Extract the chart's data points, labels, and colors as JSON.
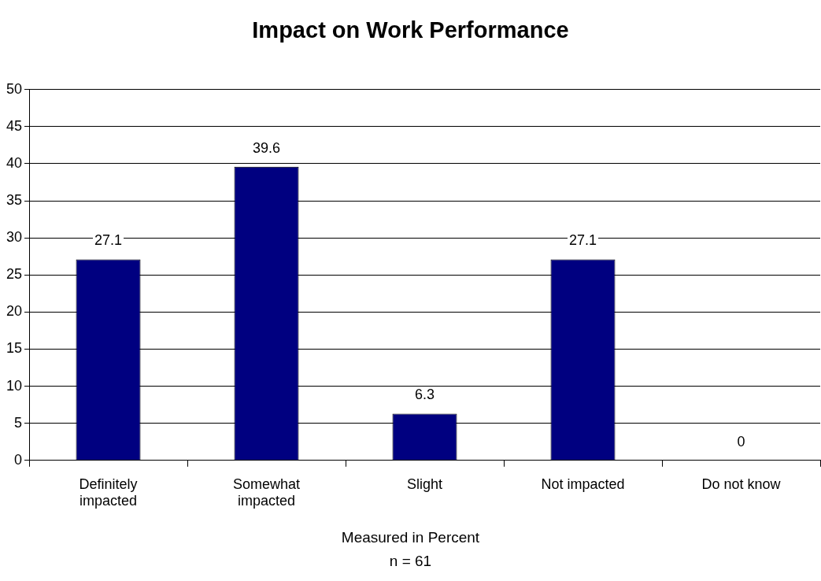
{
  "chart_data": {
    "type": "bar",
    "title": "Impact on Work Performance",
    "xlabel": "Measured in Percent",
    "annotations": [
      "n = 61"
    ],
    "categories": [
      "Definitely impacted",
      "Somewhat impacted",
      "Slight",
      "Not impacted",
      "Do not know"
    ],
    "values": [
      27.1,
      39.6,
      6.3,
      27.1,
      0
    ],
    "color": "#000080",
    "ylim": [
      0,
      50
    ],
    "yticks": [
      0,
      5,
      10,
      15,
      20,
      25,
      30,
      35,
      40,
      45,
      50
    ],
    "grid": "y",
    "legend": false,
    "data_labels": true
  }
}
